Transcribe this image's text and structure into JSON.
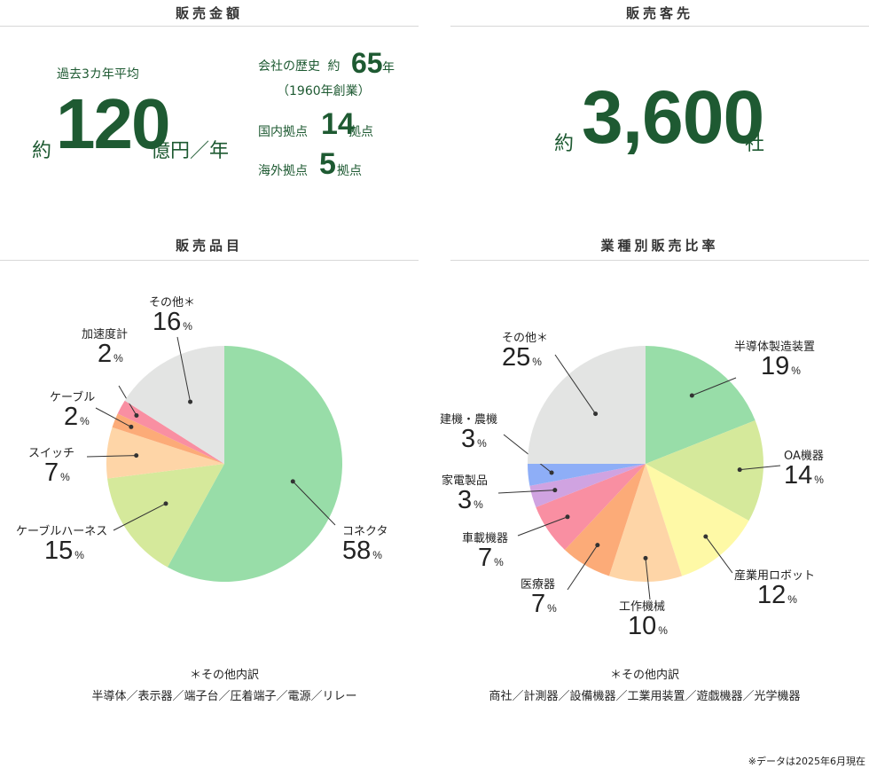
{
  "sales": {
    "title": "販売金額",
    "subtitle": "過去3カ年平均",
    "prefix": "約",
    "value": "120",
    "unit": "億円／年",
    "history_label": "会社の歴史",
    "history_prefix": "約",
    "history_value": "65",
    "history_unit": "年",
    "founded": "（1960年創業）",
    "domestic_label": "国内拠点",
    "domestic_value": "14",
    "domestic_unit": "拠点",
    "overseas_label": "海外拠点",
    "overseas_value": "5",
    "overseas_unit": "拠点"
  },
  "customers": {
    "title": "販売客先",
    "prefix": "約",
    "value": "3,600",
    "unit": "社"
  },
  "products": {
    "title": "販売品目",
    "note_title": "＊その他内訳",
    "note_items": "半導体／表示器／端子台／圧着端子／電源／リレー"
  },
  "industries": {
    "title": "業種別販売比率",
    "note_title": "＊その他内訳",
    "note_items": "商社／計測器／設備機器／工業用装置／遊戯機器／光学機器"
  },
  "footnote": "※データは2025年6月現在",
  "pct_unit": "%",
  "chart_data": [
    {
      "type": "pie",
      "title": "販売品目",
      "slices": [
        {
          "label": "コネクタ",
          "value": 58,
          "color": "#98dda8"
        },
        {
          "label": "ケーブルハーネス",
          "value": 15,
          "color": "#d5e99b"
        },
        {
          "label": "スイッチ",
          "value": 7,
          "color": "#fed5a7"
        },
        {
          "label": "ケーブル",
          "value": 2,
          "color": "#fcab78"
        },
        {
          "label": "加速度計",
          "value": 2,
          "color": "#f98fa2"
        },
        {
          "label": "その他＊",
          "value": 16,
          "color": "#e3e4e3"
        }
      ]
    },
    {
      "type": "pie",
      "title": "業種別販売比率",
      "slices": [
        {
          "label": "半導体製造装置",
          "value": 19,
          "color": "#98dda8"
        },
        {
          "label": "OA機器",
          "value": 14,
          "color": "#d5e99b"
        },
        {
          "label": "産業用ロボット",
          "value": 12,
          "color": "#fef9a6"
        },
        {
          "label": "工作機械",
          "value": 10,
          "color": "#fed5a7"
        },
        {
          "label": "医療器",
          "value": 7,
          "color": "#fcab78"
        },
        {
          "label": "車載機器",
          "value": 7,
          "color": "#f98fa2"
        },
        {
          "label": "家電製品",
          "value": 3,
          "color": "#d0a3e1"
        },
        {
          "label": "建機・農機",
          "value": 3,
          "color": "#8eaef7"
        },
        {
          "label": "その他＊",
          "value": 25,
          "color": "#e3e4e3"
        }
      ]
    }
  ]
}
